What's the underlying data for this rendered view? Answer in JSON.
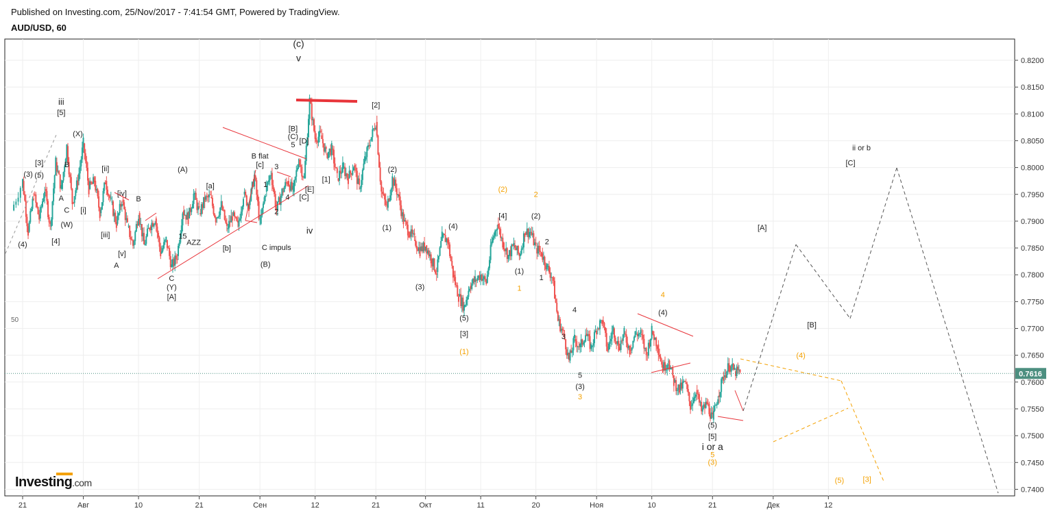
{
  "header": {
    "published": "Published on Investing.com, 25/Nov/2017 - 7:41:54 GMT, Powered by TradingView.",
    "symbol": "AUD/USD, 60"
  },
  "logo": {
    "text": "Investing",
    "domain": ".com"
  },
  "colors": {
    "up": "#26a69a",
    "down": "#ef5350",
    "annot": "#e8343a",
    "orange": "#f4a100",
    "proj": "#555555",
    "price": "#4c8f80"
  },
  "chart_data": {
    "type": "line",
    "title": "AUD/USD, 60",
    "xlabel": "",
    "ylabel": "",
    "ylim": [
      0.7395,
      0.824
    ],
    "y_ticks": [
      "0.8200",
      "0.8150",
      "0.8100",
      "0.8050",
      "0.8000",
      "0.7950",
      "0.7900",
      "0.7850",
      "0.7800",
      "0.7750",
      "0.7700",
      "0.7650",
      "0.7600",
      "0.7550",
      "0.7500",
      "0.7450",
      "0.7400"
    ],
    "x_ticks": [
      {
        "d": 0,
        "label": "21"
      },
      {
        "d": 11,
        "label": "Авг"
      },
      {
        "d": 21,
        "label": "10"
      },
      {
        "d": 32,
        "label": "21"
      },
      {
        "d": 43,
        "label": "Сен"
      },
      {
        "d": 53,
        "label": "12"
      },
      {
        "d": 64,
        "label": "21"
      },
      {
        "d": 73,
        "label": "Окт"
      },
      {
        "d": 83,
        "label": "11"
      },
      {
        "d": 93,
        "label": "20"
      },
      {
        "d": 104,
        "label": "Ноя"
      },
      {
        "d": 114,
        "label": "10"
      },
      {
        "d": 125,
        "label": "21"
      },
      {
        "d": 136,
        "label": "Дек"
      },
      {
        "d": 146,
        "label": "12"
      }
    ],
    "current_price": "0.7616",
    "left_marker": "50",
    "series": [
      {
        "values": [
          [
            -2,
            0.792
          ],
          [
            0,
            0.7975
          ],
          [
            1,
            0.788
          ],
          [
            2,
            0.795
          ],
          [
            3,
            0.7905
          ],
          [
            4,
            0.796
          ],
          [
            5,
            0.789
          ],
          [
            6,
            0.801
          ],
          [
            7,
            0.796
          ],
          [
            8,
            0.804
          ],
          [
            9,
            0.7935
          ],
          [
            10,
            0.7975
          ],
          [
            11,
            0.8045
          ],
          [
            12,
            0.796
          ],
          [
            13,
            0.7975
          ],
          [
            14,
            0.7915
          ],
          [
            15,
            0.7975
          ],
          [
            16,
            0.7935
          ],
          [
            17,
            0.7895
          ],
          [
            18,
            0.794
          ],
          [
            19,
            0.789
          ],
          [
            20,
            0.7855
          ],
          [
            21,
            0.7915
          ],
          [
            22,
            0.7855
          ],
          [
            23,
            0.789
          ],
          [
            24,
            0.7905
          ],
          [
            25,
            0.784
          ],
          [
            26,
            0.7865
          ],
          [
            27,
            0.7815
          ],
          [
            28,
            0.7835
          ],
          [
            29,
            0.792
          ],
          [
            30,
            0.7905
          ],
          [
            31,
            0.795
          ],
          [
            32,
            0.7915
          ],
          [
            33,
            0.794
          ],
          [
            34,
            0.7945
          ],
          [
            35,
            0.7905
          ],
          [
            36,
            0.793
          ],
          [
            37,
            0.7885
          ],
          [
            38,
            0.791
          ],
          [
            39,
            0.789
          ],
          [
            40,
            0.795
          ],
          [
            41,
            0.793
          ],
          [
            42,
            0.7985
          ],
          [
            43,
            0.7895
          ],
          [
            44,
            0.7955
          ],
          [
            45,
            0.799
          ],
          [
            46,
            0.792
          ],
          [
            47,
            0.7955
          ],
          [
            48,
            0.7975
          ],
          [
            49,
            0.7955
          ],
          [
            50,
            0.8015
          ],
          [
            51,
            0.798
          ],
          [
            52,
            0.8125
          ],
          [
            53,
            0.8055
          ],
          [
            54,
            0.806
          ],
          [
            55,
            0.8025
          ],
          [
            56,
            0.8035
          ],
          [
            57,
            0.798
          ],
          [
            58,
            0.8
          ],
          [
            59,
            0.798
          ],
          [
            60,
            0.8005
          ],
          [
            61,
            0.796
          ],
          [
            62,
            0.8015
          ],
          [
            63,
            0.805
          ],
          [
            64,
            0.8085
          ],
          [
            65,
            0.7955
          ],
          [
            66,
            0.7925
          ],
          [
            67,
            0.798
          ],
          [
            68,
            0.795
          ],
          [
            69,
            0.79
          ],
          [
            70,
            0.788
          ],
          [
            71,
            0.7865
          ],
          [
            72,
            0.7845
          ],
          [
            73,
            0.7855
          ],
          [
            74,
            0.783
          ],
          [
            75,
            0.7805
          ],
          [
            76,
            0.787
          ],
          [
            77,
            0.7865
          ],
          [
            78,
            0.78
          ],
          [
            79,
            0.776
          ],
          [
            80,
            0.774
          ],
          [
            81,
            0.778
          ],
          [
            82,
            0.779
          ],
          [
            83,
            0.78
          ],
          [
            84,
            0.7785
          ],
          [
            85,
            0.786
          ],
          [
            86,
            0.7895
          ],
          [
            87,
            0.786
          ],
          [
            88,
            0.7835
          ],
          [
            89,
            0.7855
          ],
          [
            90,
            0.7835
          ],
          [
            91,
            0.788
          ],
          [
            92,
            0.788
          ],
          [
            93,
            0.785
          ],
          [
            94,
            0.784
          ],
          [
            95,
            0.7815
          ],
          [
            96,
            0.7795
          ],
          [
            97,
            0.7715
          ],
          [
            98,
            0.769
          ],
          [
            99,
            0.764
          ],
          [
            100,
            0.768
          ],
          [
            101,
            0.7665
          ],
          [
            102,
            0.769
          ],
          [
            103,
            0.7665
          ],
          [
            104,
            0.77
          ],
          [
            105,
            0.7715
          ],
          [
            106,
            0.766
          ],
          [
            107,
            0.77
          ],
          [
            108,
            0.7665
          ],
          [
            109,
            0.769
          ],
          [
            110,
            0.766
          ],
          [
            111,
            0.769
          ],
          [
            112,
            0.769
          ],
          [
            113,
            0.765
          ],
          [
            114,
            0.7695
          ],
          [
            115,
            0.767
          ],
          [
            116,
            0.7625
          ],
          [
            117,
            0.764
          ],
          [
            118,
            0.76
          ],
          [
            119,
            0.7585
          ],
          [
            120,
            0.76
          ],
          [
            121,
            0.7555
          ],
          [
            122,
            0.7585
          ],
          [
            123,
            0.7545
          ],
          [
            124,
            0.756
          ],
          [
            125,
            0.753
          ],
          [
            126,
            0.7575
          ],
          [
            127,
            0.761
          ],
          [
            128,
            0.763
          ],
          [
            129,
            0.762
          ],
          [
            130,
            0.7616
          ]
        ]
      }
    ]
  },
  "annotations": {
    "black": [
      {
        "t": "(c)",
        "d": 50,
        "p": 0.8225,
        "s": 14
      },
      {
        "t": "v",
        "d": 50,
        "p": 0.8198,
        "s": 14
      },
      {
        "t": "iii",
        "d": 7,
        "p": 0.8117,
        "s": 13
      },
      {
        "t": "[5]",
        "d": 7,
        "p": 0.8098
      },
      {
        "t": "(X)",
        "d": 10,
        "p": 0.8058
      },
      {
        "t": "[3]",
        "d": 3,
        "p": 0.8004
      },
      {
        "t": "(3)",
        "d": 1,
        "p": 0.7983
      },
      {
        "t": "(5)",
        "d": 3,
        "p": 0.7981
      },
      {
        "t": "B",
        "d": 8,
        "p": 0.8001
      },
      {
        "t": "A",
        "d": 7,
        "p": 0.7938
      },
      {
        "t": "C",
        "d": 8,
        "p": 0.7916
      },
      {
        "t": "(W)",
        "d": 8,
        "p": 0.7889
      },
      {
        "t": "[4]",
        "d": 6,
        "p": 0.7858
      },
      {
        "t": "(4)",
        "d": 0,
        "p": 0.7852
      },
      {
        "t": "[ii]",
        "d": 15,
        "p": 0.7993
      },
      {
        "t": "[i]",
        "d": 11,
        "p": 0.7916
      },
      {
        "t": "[iv]",
        "d": 18,
        "p": 0.7947
      },
      {
        "t": "[iii]",
        "d": 15,
        "p": 0.787
      },
      {
        "t": "[v]",
        "d": 18,
        "p": 0.7835
      },
      {
        "t": "A",
        "d": 17,
        "p": 0.7813
      },
      {
        "t": "B",
        "d": 21,
        "p": 0.7937
      },
      {
        "t": "(A)",
        "d": 29,
        "p": 0.7992
      },
      {
        "t": "[a]",
        "d": 34,
        "p": 0.7961
      },
      {
        "t": "15",
        "d": 29,
        "p": 0.7867
      },
      {
        "t": "AZZ",
        "d": 31,
        "p": 0.7856
      },
      {
        "t": "[b]",
        "d": 37,
        "p": 0.7845
      },
      {
        "t": "C",
        "d": 27,
        "p": 0.7789
      },
      {
        "t": "(Y)",
        "d": 27,
        "p": 0.7772
      },
      {
        "t": "[A]",
        "d": 27,
        "p": 0.7754
      },
      {
        "t": "B flat",
        "d": 43,
        "p": 0.8017
      },
      {
        "t": "[c]",
        "d": 43,
        "p": 0.8001
      },
      {
        "t": "3",
        "d": 46,
        "p": 0.7997
      },
      {
        "t": "1",
        "d": 44,
        "p": 0.7964
      },
      {
        "t": "4",
        "d": 48,
        "p": 0.794
      },
      {
        "t": "2",
        "d": 46,
        "p": 0.7913
      },
      {
        "t": "C impuls",
        "d": 46,
        "p": 0.7846
      },
      {
        "t": "(B)",
        "d": 44,
        "p": 0.7815
      },
      {
        "t": "[B]",
        "d": 49,
        "p": 0.8068
      },
      {
        "t": "(C)",
        "d": 49,
        "p": 0.8053
      },
      {
        "t": "5",
        "d": 49,
        "p": 0.8038
      },
      {
        "t": "[D]",
        "d": 51,
        "p": 0.8045
      },
      {
        "t": "[C]",
        "d": 51,
        "p": 0.794
      },
      {
        "t": "[E]",
        "d": 52,
        "p": 0.7955
      },
      {
        "t": "[1]",
        "d": 55,
        "p": 0.7973
      },
      {
        "t": "iv",
        "d": 52,
        "p": 0.7877,
        "s": 13
      },
      {
        "t": "[2]",
        "d": 64,
        "p": 0.8112
      },
      {
        "t": "(2)",
        "d": 67,
        "p": 0.7992
      },
      {
        "t": "(1)",
        "d": 66,
        "p": 0.7883
      },
      {
        "t": "(3)",
        "d": 72,
        "p": 0.7773
      },
      {
        "t": "(4)",
        "d": 78,
        "p": 0.7886
      },
      {
        "t": "(5)",
        "d": 80,
        "p": 0.7715
      },
      {
        "t": "[3]",
        "d": 80,
        "p": 0.7685
      },
      {
        "t": "[4]",
        "d": 87,
        "p": 0.7905
      },
      {
        "t": "(2)",
        "d": 93,
        "p": 0.7905
      },
      {
        "t": "(1)",
        "d": 90,
        "p": 0.7802
      },
      {
        "t": "2",
        "d": 95,
        "p": 0.7857
      },
      {
        "t": "1",
        "d": 94,
        "p": 0.779
      },
      {
        "t": "4",
        "d": 100,
        "p": 0.773
      },
      {
        "t": "3",
        "d": 98,
        "p": 0.768
      },
      {
        "t": "5",
        "d": 101,
        "p": 0.7608
      },
      {
        "t": "(3)",
        "d": 101,
        "p": 0.7587
      },
      {
        "t": "(4)",
        "d": 116,
        "p": 0.7725
      },
      {
        "t": "(5)",
        "d": 125,
        "p": 0.7515
      },
      {
        "t": "[5]",
        "d": 125,
        "p": 0.7494
      },
      {
        "t": "i or a",
        "d": 125,
        "p": 0.7473,
        "s": 14
      },
      {
        "t": "[A]",
        "d": 134,
        "p": 0.7883
      },
      {
        "t": "[B]",
        "d": 143,
        "p": 0.7702
      },
      {
        "t": "ii or b",
        "d": 152,
        "p": 0.8032
      },
      {
        "t": "[C]",
        "d": 150,
        "p": 0.8004
      }
    ],
    "orange": [
      {
        "t": "(2)",
        "d": 87,
        "p": 0.7955
      },
      {
        "t": "2",
        "d": 93,
        "p": 0.7945
      },
      {
        "t": "1",
        "d": 90,
        "p": 0.777
      },
      {
        "t": "(1)",
        "d": 80,
        "p": 0.7652
      },
      {
        "t": "4",
        "d": 116,
        "p": 0.7758
      },
      {
        "t": "3",
        "d": 101,
        "p": 0.7568
      },
      {
        "t": "(4)",
        "d": 141,
        "p": 0.7645
      },
      {
        "t": "5",
        "d": 125,
        "p": 0.746
      },
      {
        "t": "(3)",
        "d": 125,
        "p": 0.7446
      },
      {
        "t": "(5)",
        "d": 148,
        "p": 0.7412
      },
      {
        "t": "[3]",
        "d": 153,
        "p": 0.7414
      }
    ]
  }
}
